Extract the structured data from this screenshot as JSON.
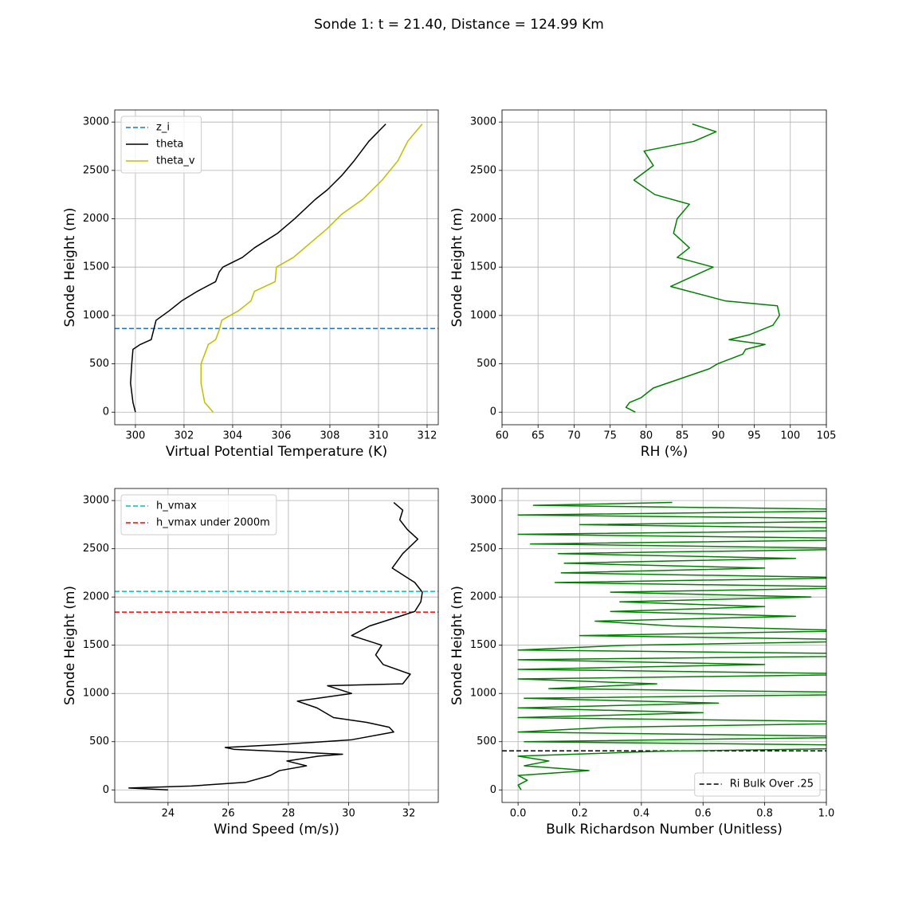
{
  "title": "Sonde 1: t = 21.40, Distance = 124.99 Km",
  "chart_data": [
    {
      "type": "line",
      "xlabel": "Virtual Potential Temperature (K)",
      "ylabel": "Sonde Height (m)",
      "xlim": [
        299.15,
        312.46
      ],
      "ylim": [
        -130,
        3125
      ],
      "xticks": [
        300,
        302,
        304,
        306,
        308,
        310,
        312
      ],
      "yticks": [
        0,
        500,
        1000,
        1500,
        2000,
        2500,
        3000
      ],
      "grid": true,
      "legend": "upper left",
      "hlines": [
        {
          "name": "z_i",
          "color": "#1f77b4",
          "value": 865
        }
      ],
      "series": [
        {
          "name": "theta",
          "color": "#000000",
          "x": [
            300.0,
            299.9,
            299.8,
            299.85,
            299.9,
            300.2,
            300.65,
            300.75,
            300.85,
            301.4,
            301.9,
            302.55,
            303.3,
            303.45,
            303.6,
            304.4,
            304.9,
            305.85,
            306.55,
            307.4,
            307.9,
            308.5,
            309.0,
            309.6,
            310.3
          ],
          "y": [
            0,
            100,
            300,
            500,
            650,
            700,
            750,
            850,
            950,
            1050,
            1150,
            1250,
            1350,
            1450,
            1500,
            1600,
            1700,
            1850,
            2000,
            2200,
            2300,
            2450,
            2600,
            2800,
            2980
          ]
        },
        {
          "name": "theta_v",
          "color": "#bfbf00",
          "x": [
            303.2,
            302.85,
            302.7,
            302.7,
            303.0,
            303.3,
            303.45,
            303.55,
            304.25,
            304.75,
            304.9,
            305.75,
            305.8,
            306.5,
            307.2,
            307.9,
            308.5,
            309.35,
            310.15,
            310.8,
            311.2,
            311.8
          ],
          "y": [
            0,
            100,
            300,
            500,
            700,
            750,
            850,
            950,
            1050,
            1150,
            1250,
            1350,
            1500,
            1600,
            1750,
            1900,
            2050,
            2200,
            2400,
            2600,
            2800,
            2980
          ]
        }
      ]
    },
    {
      "type": "line",
      "xlabel": "RH (%)",
      "ylabel": "Sonde Height (m)",
      "xlim": [
        60,
        105
      ],
      "ylim": [
        -130,
        3125
      ],
      "xticks": [
        60,
        65,
        70,
        75,
        80,
        85,
        90,
        95,
        100,
        105
      ],
      "yticks": [
        0,
        500,
        1000,
        1500,
        2000,
        2500,
        3000
      ],
      "grid": true,
      "series": [
        {
          "color": "#008000",
          "x": [
            78.5,
            77.2,
            77.7,
            79.3,
            81.0,
            84.9,
            88.8,
            89.9,
            93.4,
            93.8,
            96.5,
            91.5,
            94.3,
            97.6,
            98.5,
            98.2,
            91.0,
            83.4,
            89.3,
            84.3,
            86.0,
            83.8,
            84.3,
            86.0,
            81.2,
            78.3,
            81.0,
            79.7,
            86.6,
            89.7,
            86.4
          ],
          "y": [
            0,
            50,
            100,
            150,
            250,
            350,
            450,
            500,
            600,
            650,
            700,
            750,
            800,
            900,
            1000,
            1100,
            1150,
            1300,
            1500,
            1600,
            1700,
            1850,
            2000,
            2150,
            2250,
            2400,
            2550,
            2700,
            2800,
            2900,
            2980
          ]
        }
      ]
    },
    {
      "type": "line",
      "xlabel": "Wind Speed (m/s))",
      "ylabel": "Sonde Height (m)",
      "xlim": [
        22.23,
        32.98
      ],
      "ylim": [
        -130,
        3125
      ],
      "xticks": [
        24,
        26,
        28,
        30,
        32
      ],
      "yticks": [
        0,
        500,
        1000,
        1500,
        2000,
        2500,
        3000
      ],
      "grid": true,
      "legend": "upper left",
      "hlines": [
        {
          "name": "h_vmax",
          "color": "#00bfbf",
          "value": 2058
        },
        {
          "name": "h_vmax under 2000m",
          "color": "#ff0000",
          "value": 1843
        }
      ],
      "series": [
        {
          "color": "#000000",
          "x": [
            24.0,
            22.7,
            24.77,
            26.6,
            27.4,
            27.7,
            28.6,
            27.95,
            29.0,
            29.8,
            26.2,
            25.9,
            27.7,
            30.1,
            31.5,
            31.35,
            30.6,
            29.5,
            28.95,
            28.3,
            30.1,
            29.3,
            31.8,
            32.05,
            31.15,
            30.9,
            31.1,
            30.1,
            30.7,
            32.2,
            32.4,
            32.45,
            32.2,
            31.45,
            31.8,
            32.3,
            31.95,
            31.7,
            31.8,
            31.5
          ],
          "y": [
            0,
            20,
            40,
            80,
            150,
            200,
            250,
            300,
            350,
            370,
            420,
            440,
            470,
            520,
            600,
            650,
            700,
            750,
            850,
            920,
            1000,
            1080,
            1100,
            1200,
            1300,
            1400,
            1500,
            1600,
            1700,
            1850,
            1950,
            2050,
            2150,
            2300,
            2450,
            2600,
            2700,
            2800,
            2900,
            2980
          ]
        }
      ]
    },
    {
      "type": "line",
      "xlabel": "Bulk Richardson Number (Unitless)",
      "ylabel": "Sonde Height (m)",
      "xlim": [
        -0.052,
        1.0
      ],
      "ylim": [
        -130,
        3125
      ],
      "xticks": [
        {
          "value": 0,
          "label": "0.0"
        },
        0.2,
        0.4,
        0.6,
        0.8,
        {
          "value": 1,
          "label": "1.0"
        }
      ],
      "yticks": [
        0,
        500,
        1000,
        1500,
        2000,
        2500,
        3000
      ],
      "grid": true,
      "legend": "lower right",
      "hlines": [
        {
          "name": "Ri Bulk Over .25",
          "color": "#000000",
          "value": 405
        }
      ],
      "series": [
        {
          "color": "#008000",
          "x": [
            0.01,
            0.0,
            0.03,
            0.0,
            0.23,
            0.02,
            0.1,
            0.0,
            0.45,
            1.5,
            0.02,
            1.2,
            0.0,
            0.3,
            1.3,
            0.0,
            0.6,
            0.0,
            0.65,
            0.02,
            1.4,
            0.1,
            0.45,
            0.0,
            1.2,
            0.0,
            0.8,
            0.0,
            1.5,
            0.0,
            0.35,
            1.3,
            0.2,
            1.1,
            0.5,
            0.25,
            0.9,
            0.3,
            0.8,
            0.33,
            0.95,
            0.3,
            1.2,
            0.12,
            1.1,
            0.14,
            0.8,
            0.15,
            0.9,
            0.13,
            1.2,
            0.04,
            1.3,
            0.0,
            1.4,
            0.2,
            1.5,
            0.0,
            1.3,
            0.05,
            0.5
          ],
          "y": [
            0,
            50,
            100,
            150,
            200,
            250,
            300,
            350,
            400,
            450,
            500,
            550,
            600,
            650,
            700,
            750,
            800,
            850,
            900,
            950,
            1000,
            1050,
            1100,
            1150,
            1200,
            1250,
            1300,
            1350,
            1400,
            1450,
            1500,
            1550,
            1600,
            1650,
            1700,
            1750,
            1800,
            1850,
            1900,
            1950,
            2000,
            2050,
            2100,
            2150,
            2200,
            2250,
            2300,
            2350,
            2400,
            2450,
            2500,
            2550,
            2600,
            2650,
            2700,
            2750,
            2800,
            2850,
            2900,
            2950,
            2980
          ]
        }
      ]
    }
  ]
}
